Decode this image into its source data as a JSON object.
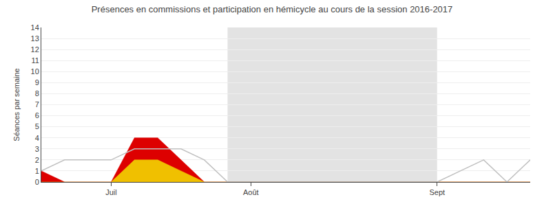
{
  "chart_data": {
    "type": "area",
    "title": "Présences en commissions et participation en hémicycle au cours de la session 2016-2017",
    "ylabel": "Séances par semaine",
    "x": [
      0,
      1,
      2,
      3,
      4,
      5,
      6,
      7,
      8,
      9,
      10,
      11,
      12,
      13,
      14,
      15,
      16,
      17,
      18,
      19,
      20,
      21
    ],
    "xlim": [
      0,
      21
    ],
    "xticks": [
      {
        "value": 3,
        "label": "Juil"
      },
      {
        "value": 9,
        "label": "Août"
      },
      {
        "value": 17,
        "label": "Sept"
      }
    ],
    "ylim": [
      0,
      14
    ],
    "yticks": [
      0,
      1,
      2,
      3,
      4,
      5,
      6,
      7,
      8,
      9,
      10,
      11,
      12,
      13,
      14
    ],
    "grid": true,
    "stacked": false,
    "shaded_x": [
      8,
      17
    ],
    "series": [
      {
        "type": "area",
        "color": "#dd0000",
        "values": [
          1,
          0,
          0,
          0,
          4,
          4,
          2,
          0,
          0,
          0,
          0,
          0,
          0,
          0,
          0,
          0,
          0,
          0,
          0,
          0,
          0,
          0
        ]
      },
      {
        "type": "area",
        "color": "#f0c000",
        "values": [
          0,
          0,
          0,
          0,
          2,
          2,
          1,
          0,
          0,
          0,
          0,
          0,
          0,
          0,
          0,
          0,
          0,
          0,
          0,
          0,
          0,
          0
        ]
      },
      {
        "type": "line",
        "color": "#c0c0c0",
        "values": [
          1,
          2,
          2,
          2,
          3,
          3,
          3,
          2,
          0,
          0,
          0,
          0,
          0,
          0,
          0,
          0,
          0,
          0,
          1,
          2,
          0,
          2
        ]
      }
    ]
  }
}
